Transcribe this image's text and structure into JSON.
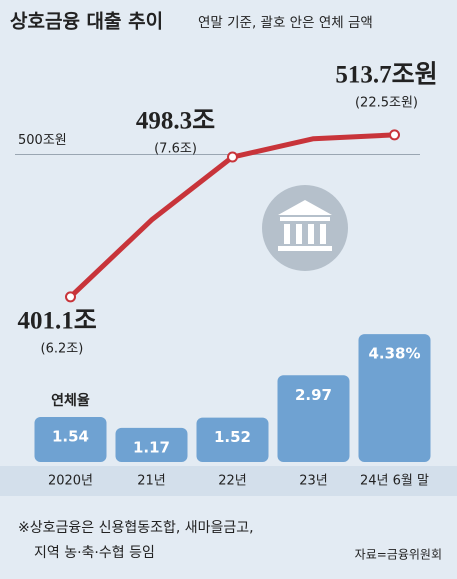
{
  "chart_data": {
    "type": "bar",
    "title": "상호금융 대출 추이",
    "subtitle": "연말 기준, 괄호 안은 연체 금액",
    "categories": [
      "2020년",
      "21년",
      "22년",
      "23년",
      "24년 6월 말"
    ],
    "series": [
      {
        "name": "연체율",
        "type": "bar",
        "color": "#6fa2d2",
        "values": [
          1.54,
          1.17,
          1.52,
          2.97,
          4.38
        ],
        "value_labels": [
          "1.54",
          "1.17",
          "1.52",
          "2.97",
          "4.38%"
        ]
      },
      {
        "type": "line",
        "axis": "y2",
        "color": "#c8343a",
        "values": [
          401.1,
          454.5,
          498.3,
          511,
          513.7
        ],
        "value_labels": [
          "401.1조",
          null,
          "498.3조",
          null,
          "513.7조원"
        ],
        "amount_labels": [
          "(6.2조)",
          null,
          "(7.6조)",
          null,
          "(22.5조원)"
        ]
      }
    ],
    "ylim": [
      0,
      5
    ],
    "y2lim": [
      360,
      540
    ],
    "y2ticks": [
      {
        "value": 500,
        "label": "500조원"
      }
    ],
    "note": [
      "※상호금융은 신용협동조합, 새마을금고,",
      "지역 농·축·수협 등임"
    ],
    "source": "자료=금융위원회"
  }
}
